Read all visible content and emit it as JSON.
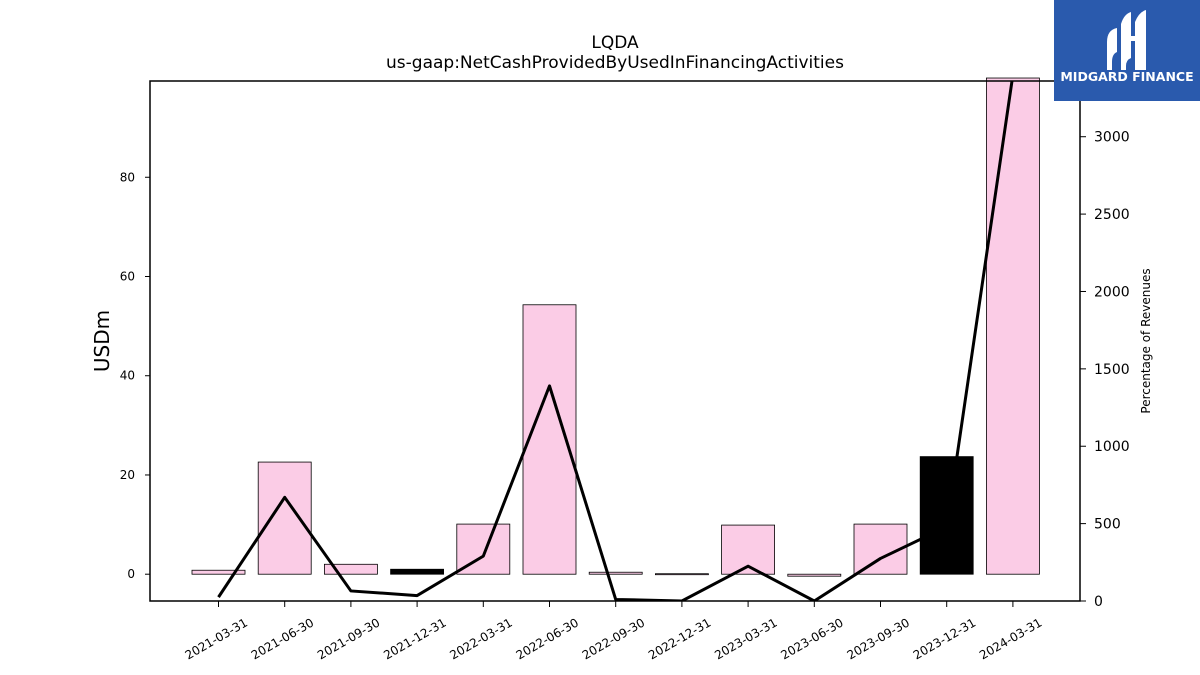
{
  "chart_data": {
    "type": "bar",
    "title": "LQDA",
    "subtitle": "us-gaap:NetCashProvidedByUsedInFinancingActivities",
    "ylabel": "USDm",
    "ylabel_right": "Percentage of Revenues",
    "categories": [
      "2021-03-31",
      "2021-06-30",
      "2021-09-30",
      "2021-12-31",
      "2022-03-31",
      "2022-06-30",
      "2022-09-30",
      "2022-12-31",
      "2023-03-31",
      "2023-06-30",
      "2023-09-30",
      "2023-12-31",
      "2024-03-31"
    ],
    "series": [
      {
        "axis": "left",
        "type": "bar",
        "values": [
          0.8,
          22.6,
          2.0,
          1.0,
          10.1,
          54.3,
          0.4,
          0.1,
          9.9,
          -0.4,
          10.1,
          23.7,
          100.0
        ],
        "colors": [
          "#fbcce6",
          "#fbcce6",
          "#fbcce6",
          "#000000",
          "#fbcce6",
          "#fbcce6",
          "#fbcce6",
          "#fbcce6",
          "#fbcce6",
          "#fbcce6",
          "#fbcce6",
          "#000000",
          "#fbcce6"
        ]
      },
      {
        "axis": "right",
        "type": "line",
        "color": "#000000",
        "values": [
          25,
          670,
          65,
          35,
          290,
          1390,
          10,
          0,
          225,
          -5,
          275,
          480,
          3400
        ]
      }
    ],
    "ylim": [
      -5.4,
      99.4
    ],
    "yticks": [
      0,
      20,
      40,
      60,
      80
    ],
    "ylim_right": [
      0,
      3360
    ],
    "yticks_right": [
      0,
      500,
      1000,
      1500,
      2000,
      2500,
      3000
    ],
    "grid": false
  },
  "logo": {
    "text": "MIDGARD FINANCE",
    "bg": "#2a5aad"
  }
}
